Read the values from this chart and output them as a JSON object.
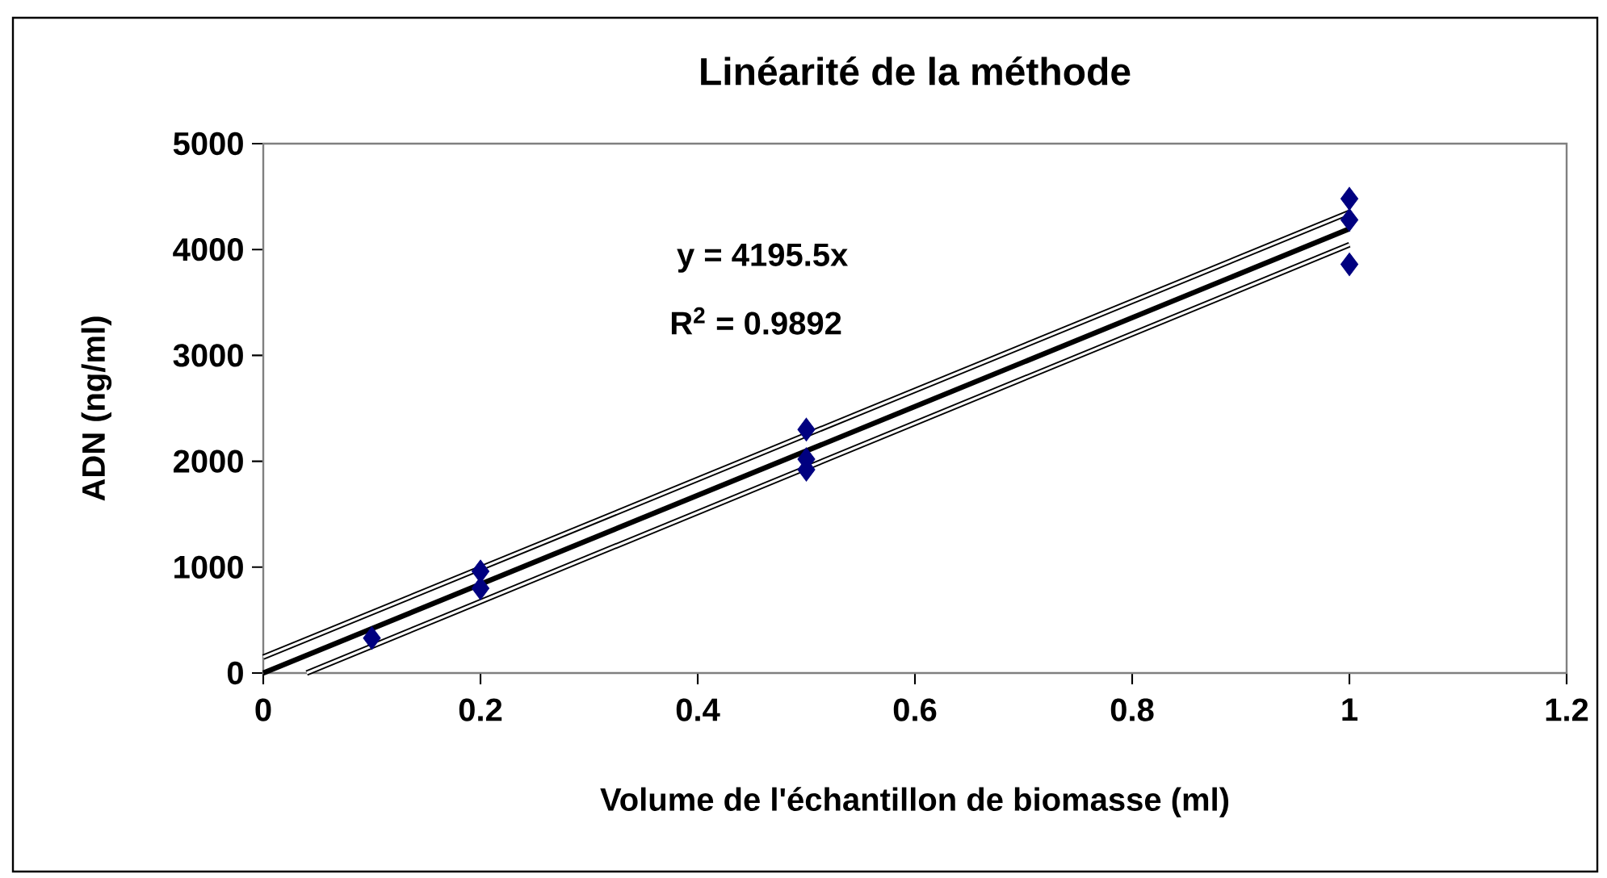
{
  "chart_data": {
    "type": "scatter",
    "title": "Linéarité de la méthode",
    "xlabel": "Volume de l'échantillon de biomasse (ml)",
    "ylabel": "ADN (ng/ml)",
    "annotations": [
      "y = 4195.5x",
      "R$^{2}$ = 0.9892"
    ],
    "marker": "diamond",
    "series": [
      {
        "color": "#000080",
        "x": [
          0.1,
          0.2,
          0.2,
          0.5,
          0.5,
          0.5,
          1,
          1,
          1
        ],
        "values": [
          330,
          960,
          800,
          2300,
          2020,
          1920,
          4480,
          4280,
          3860
        ]
      },
      {
        "type": "line",
        "color": "#000000",
        "marker": "none",
        "x": [
          0,
          1
        ],
        "values": [
          0,
          4195.5
        ]
      },
      {
        "type": "line",
        "color": "#000000",
        "marker": "none",
        "x": [
          0,
          1
        ],
        "values": [
          150,
          4350
        ]
      },
      {
        "type": "line",
        "color": "#000000",
        "marker": "none",
        "x": [
          0.04,
          1
        ],
        "values": [
          0,
          4045
        ]
      }
    ],
    "xlim": [
      0,
      1.2
    ],
    "xticks": [
      0,
      0.2,
      0.4,
      0.6,
      0.8,
      1,
      1.2
    ],
    "ylim": [
      0,
      5000
    ],
    "yticks": [
      0,
      1000,
      2000,
      3000,
      4000,
      5000
    ]
  }
}
